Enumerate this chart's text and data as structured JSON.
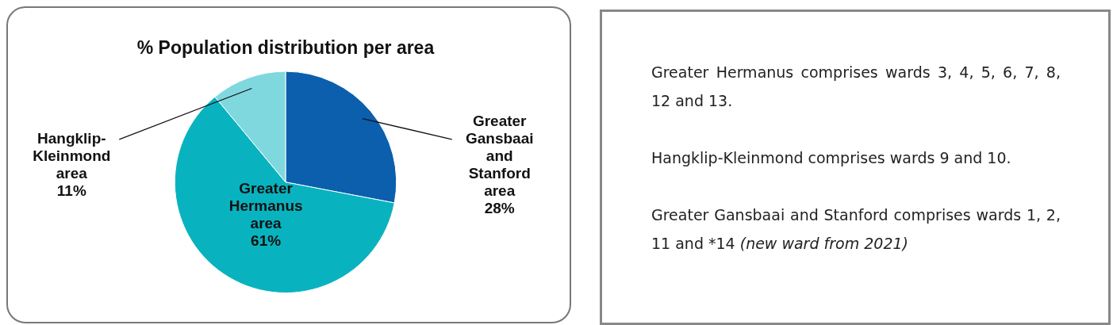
{
  "chart_data": {
    "type": "pie",
    "title": "% Population distribution per area",
    "categories": [
      "Greater Gansbaai and Stanford area",
      "Greater Hermanus area",
      "Hangklip-Kleinmond area"
    ],
    "values": [
      28,
      61,
      11
    ],
    "value_labels": [
      "28%",
      "61%",
      "11%"
    ],
    "colors": [
      "#0b5fad",
      "#08b3bf",
      "#80d8df"
    ],
    "annotations": [
      "Greater Hermanus comprises wards 3, 4, 5, 6, 7, 8, 12 and 13.",
      "Hangklip-Kleinmond comprises wards 9 and 10.",
      "Greater Gansbaai and Stanford comprises wards 1, 2, 11 and *14 (new ward from 2021)"
    ]
  }
}
